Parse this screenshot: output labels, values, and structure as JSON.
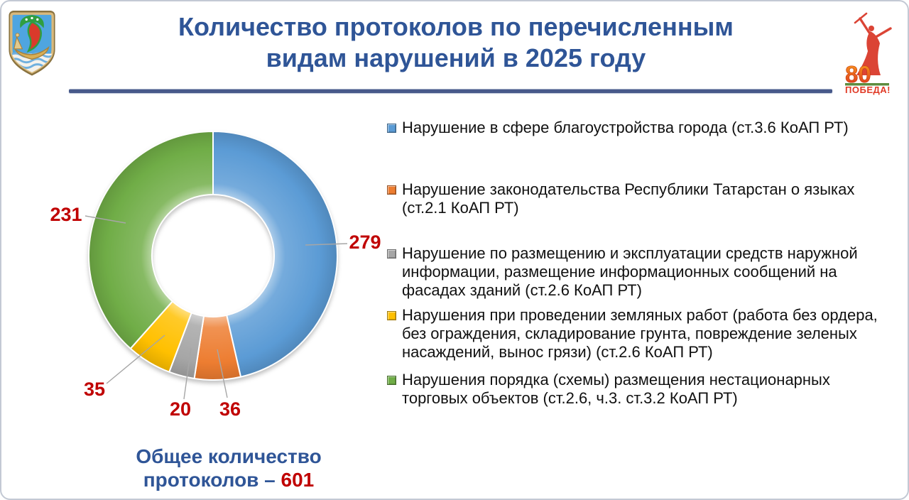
{
  "header": {
    "title": "Количество протоколов по перечисленным видам нарушений в 2025 году"
  },
  "logos": {
    "victory": {
      "number": "80",
      "caption": "ПОБЕДА!"
    }
  },
  "chart_data": {
    "type": "pie",
    "subtype": "donut",
    "title": "Количество протоколов по перечисленным видам нарушений в 2025 году",
    "total": 601,
    "start_angle_deg": 0,
    "direction": "clockwise",
    "hole_ratio": 0.49,
    "legend_position": "right",
    "value_label_color": "#C00000",
    "slices": [
      {
        "label": "Нарушение в сфере благоустройства города (ст.3.6 КоАП РТ)",
        "value": 279,
        "color": "#5B9BD5"
      },
      {
        "label": "Нарушение законодательства Республики Татарстан о языках (ст.2.1 КоАП РТ)",
        "value": 36,
        "color": "#ED7D31"
      },
      {
        "label": "Нарушение по размещению и эксплуатации средств наружной информации, размещение информационных сообщений на фасадах зданий (ст.2.6 КоАП РТ)",
        "value": 20,
        "color": "#A6A6A6"
      },
      {
        "label": "Нарушения при проведении земляных работ (работа без ордера, без ограждения, складирование грунта, повреждение зеленых насаждений, вынос грязи) (ст.2.6 КоАП РТ)",
        "value": 35,
        "color": "#FFC000"
      },
      {
        "label": "Нарушения порядка (схемы) размещения нестационарных торговых объектов (ст.2.6, ч.3. ст.3.2 КоАП РТ)",
        "value": 231,
        "color": "#70AD47"
      }
    ]
  },
  "footer": {
    "total_text": "Общее количество протоколов – ",
    "total_value": "601"
  }
}
